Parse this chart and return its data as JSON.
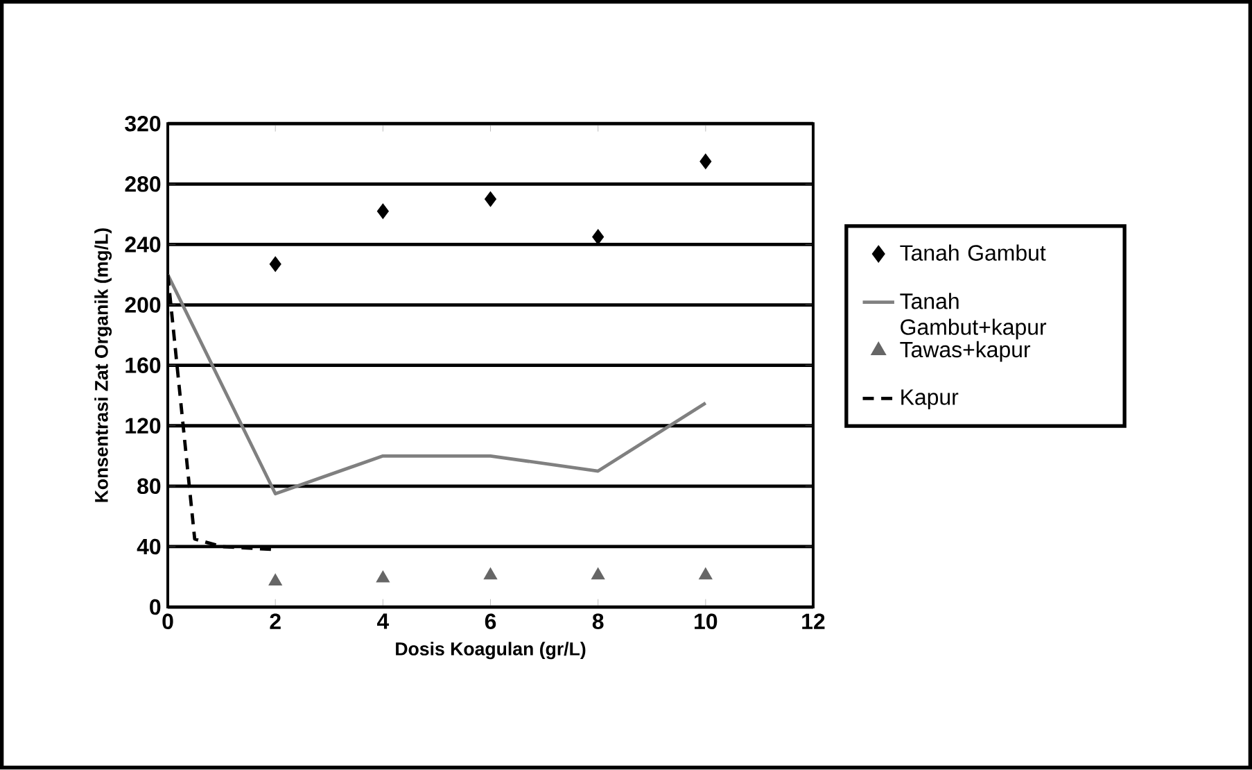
{
  "chart_data": {
    "type": "line",
    "xlabel": "Dosis Koagulan (gr/L)",
    "ylabel": "Konsentrasi Zat Organik (mg/L)",
    "xlim": [
      0,
      12
    ],
    "xticks": [
      0,
      2,
      4,
      6,
      8,
      10,
      12
    ],
    "ylim": [
      0,
      320
    ],
    "yticks": [
      0,
      40,
      80,
      120,
      160,
      200,
      240,
      280,
      320
    ],
    "grid": "y",
    "legend": "right",
    "series": [
      {
        "name": "Tanah Gambut",
        "type": "scatter",
        "marker": "diamond",
        "color": "#000000",
        "x": [
          2,
          4,
          6,
          8,
          10
        ],
        "values": [
          227,
          262,
          270,
          245,
          295
        ]
      },
      {
        "name": "Tanah Gambut+kapur",
        "marker": "none",
        "line_style": "solid",
        "color": "#808080",
        "x": [
          0,
          2,
          4,
          6,
          8,
          10
        ],
        "values": [
          220,
          75,
          100,
          100,
          90,
          135
        ]
      },
      {
        "name": "Tawas+kapur",
        "type": "scatter",
        "marker": "triangle",
        "color": "#666666",
        "x": [
          2,
          4,
          6,
          8,
          10
        ],
        "values": [
          17,
          19,
          21,
          21,
          21
        ]
      },
      {
        "name": "Kapur",
        "marker": "none",
        "line_style": "dashed",
        "color": "#000000",
        "x": [
          0,
          0.5,
          1,
          2
        ],
        "values": [
          220,
          45,
          40,
          38
        ]
      }
    ]
  }
}
